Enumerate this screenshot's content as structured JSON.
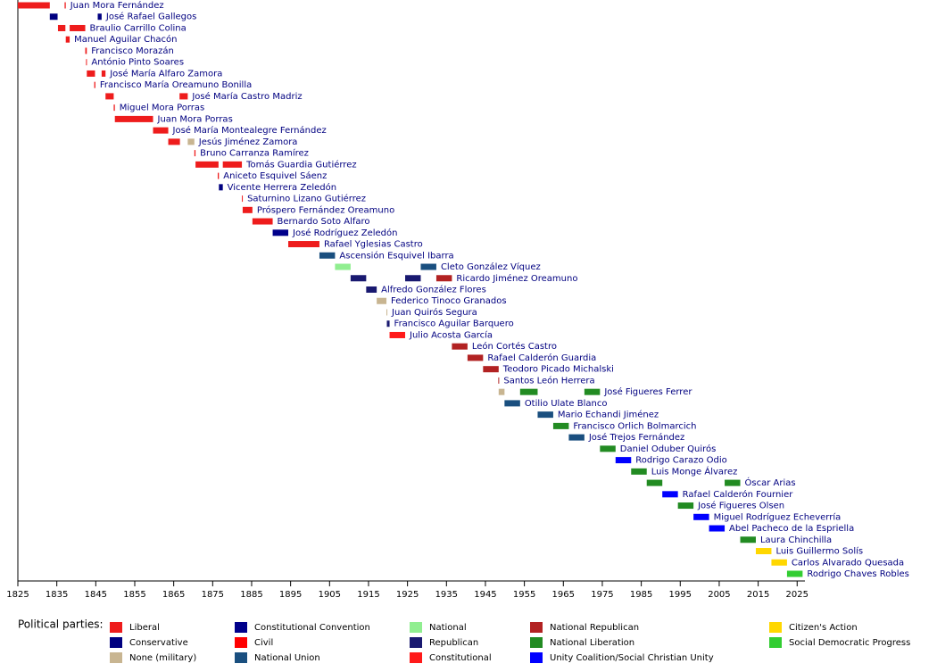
{
  "chart_data": {
    "type": "timeline",
    "xlim": [
      1825,
      2027
    ],
    "xticks": [
      1825,
      1835,
      1845,
      1855,
      1865,
      1875,
      1885,
      1895,
      1905,
      1915,
      1925,
      1935,
      1945,
      1955,
      1965,
      1975,
      1985,
      1995,
      2005,
      2015,
      2025
    ],
    "legend_title": "Political parties:",
    "parties": [
      {
        "name": "Liberal",
        "color": "#ee1c1c"
      },
      {
        "name": "Conservative",
        "color": "#000080"
      },
      {
        "name": "None (military)",
        "color": "#c8b591"
      },
      {
        "name": "Constitutional Convention",
        "color": "#00008b"
      },
      {
        "name": "Civil",
        "color": "#ff0000"
      },
      {
        "name": "National Union",
        "color": "#1a4f7f"
      },
      {
        "name": "National",
        "color": "#90ee90"
      },
      {
        "name": "Republican",
        "color": "#191970"
      },
      {
        "name": "Constitutional",
        "color": "#ff1a1a"
      },
      {
        "name": "National Republican",
        "color": "#b22222"
      },
      {
        "name": "National Liberation",
        "color": "#228b22"
      },
      {
        "name": "Unity Coalition/Social Christian Unity",
        "color": "#0000ff"
      },
      {
        "name": "Citizen's Action",
        "color": "#ffd700"
      },
      {
        "name": "Social Democratic Progress",
        "color": "#32cd32"
      }
    ],
    "rows": [
      {
        "name": "Juan Mora Fernández",
        "spans": [
          {
            "start": 1825,
            "end": 1833.2,
            "color": "#ee1c1c"
          },
          {
            "start": 1837,
            "end": 1837.3,
            "color": "#ee1c1c"
          }
        ]
      },
      {
        "name": "José Rafael Gallegos",
        "spans": [
          {
            "start": 1833.2,
            "end": 1835.2,
            "color": "#000080"
          },
          {
            "start": 1845.5,
            "end": 1846.5,
            "color": "#000080"
          }
        ]
      },
      {
        "name": "Braulio Carrillo Colina",
        "spans": [
          {
            "start": 1835.3,
            "end": 1837.2,
            "color": "#ee1c1c"
          },
          {
            "start": 1838.3,
            "end": 1842.3,
            "color": "#ee1c1c"
          }
        ]
      },
      {
        "name": "Manuel Aguilar Chacón",
        "spans": [
          {
            "start": 1837.3,
            "end": 1838.3,
            "color": "#ee1c1c"
          }
        ]
      },
      {
        "name": "Francisco Morazán",
        "spans": [
          {
            "start": 1842.3,
            "end": 1842.7,
            "color": "#ee1c1c"
          }
        ]
      },
      {
        "name": "António Pinto Soares",
        "spans": [
          {
            "start": 1842.5,
            "end": 1842.7,
            "color": "#ee1c1c"
          }
        ]
      },
      {
        "name": "José María Alfaro Zamora",
        "spans": [
          {
            "start": 1842.7,
            "end": 1844.8,
            "color": "#ee1c1c"
          },
          {
            "start": 1846.5,
            "end": 1847.5,
            "color": "#ee1c1c"
          }
        ]
      },
      {
        "name": "Francisco María Oreamuno Bonilla",
        "spans": [
          {
            "start": 1844.6,
            "end": 1844.9,
            "color": "#ee1c1c"
          }
        ]
      },
      {
        "name": "José María Castro Madriz",
        "spans": [
          {
            "start": 1847.5,
            "end": 1849.6,
            "color": "#ee1c1c"
          },
          {
            "start": 1866.5,
            "end": 1868.6,
            "color": "#ee1c1c"
          }
        ]
      },
      {
        "name": "Miguel Mora Porras",
        "spans": [
          {
            "start": 1849.6,
            "end": 1849.9,
            "color": "#ee1c1c"
          }
        ]
      },
      {
        "name": "Juan Mora Porras",
        "spans": [
          {
            "start": 1849.9,
            "end": 1859.7,
            "color": "#ee1c1c"
          }
        ]
      },
      {
        "name": "José María Montealegre Fernández",
        "spans": [
          {
            "start": 1859.7,
            "end": 1863.6,
            "color": "#ee1c1c"
          }
        ]
      },
      {
        "name": "Jesús Jiménez Zamora",
        "spans": [
          {
            "start": 1863.6,
            "end": 1866.6,
            "color": "#ee1c1c"
          },
          {
            "start": 1868.6,
            "end": 1870.3,
            "color": "#c8b591"
          }
        ]
      },
      {
        "name": "Bruno Carranza Ramírez",
        "spans": [
          {
            "start": 1870.3,
            "end": 1870.6,
            "color": "#ee1c1c"
          }
        ]
      },
      {
        "name": "Tomás Guardia Gutiérrez",
        "spans": [
          {
            "start": 1870.6,
            "end": 1876.5,
            "color": "#ee1c1c"
          },
          {
            "start": 1877.6,
            "end": 1882.5,
            "color": "#ee1c1c"
          }
        ]
      },
      {
        "name": "Aniceto Esquivel Sáenz",
        "spans": [
          {
            "start": 1876.3,
            "end": 1876.6,
            "color": "#ee1c1c"
          }
        ]
      },
      {
        "name": "Vicente Herrera Zeledón",
        "spans": [
          {
            "start": 1876.6,
            "end": 1877.6,
            "color": "#000080"
          }
        ]
      },
      {
        "name": "Saturnino Lizano Gutiérrez",
        "spans": [
          {
            "start": 1882.5,
            "end": 1882.7,
            "color": "#ee1c1c"
          }
        ]
      },
      {
        "name": "Próspero Fernández Oreamuno",
        "spans": [
          {
            "start": 1882.7,
            "end": 1885.2,
            "color": "#ee1c1c"
          }
        ]
      },
      {
        "name": "Bernardo Soto Alfaro",
        "spans": [
          {
            "start": 1885.2,
            "end": 1890.4,
            "color": "#ee1c1c"
          }
        ]
      },
      {
        "name": "José Rodríguez Zeledón",
        "spans": [
          {
            "start": 1890.4,
            "end": 1894.4,
            "color": "#00008b"
          }
        ]
      },
      {
        "name": "Rafael Yglesias Castro",
        "spans": [
          {
            "start": 1894.4,
            "end": 1902.4,
            "color": "#ee1c1c"
          }
        ]
      },
      {
        "name": "Ascensión Esquivel Ibarra",
        "spans": [
          {
            "start": 1902.4,
            "end": 1906.4,
            "color": "#1a4f7f"
          }
        ]
      },
      {
        "name": "Cleto González Víquez",
        "spans": [
          {
            "start": 1906.4,
            "end": 1910.4,
            "color": "#90ee90"
          },
          {
            "start": 1928.4,
            "end": 1932.4,
            "color": "#1a4f7f"
          }
        ]
      },
      {
        "name": "Ricardo Jiménez Oreamuno",
        "spans": [
          {
            "start": 1910.4,
            "end": 1914.4,
            "color": "#191970"
          },
          {
            "start": 1924.4,
            "end": 1928.4,
            "color": "#191970"
          },
          {
            "start": 1932.4,
            "end": 1936.4,
            "color": "#b22222"
          }
        ]
      },
      {
        "name": "Alfredo González Flores",
        "spans": [
          {
            "start": 1914.4,
            "end": 1917.1,
            "color": "#191970"
          }
        ]
      },
      {
        "name": "Federico Tinoco Granados",
        "spans": [
          {
            "start": 1917.1,
            "end": 1919.6,
            "color": "#c8b591"
          }
        ]
      },
      {
        "name": "Juan Quirós Segura",
        "spans": [
          {
            "start": 1919.6,
            "end": 1919.7,
            "color": "#c8b591"
          }
        ]
      },
      {
        "name": "Francisco Aguilar Barquero",
        "spans": [
          {
            "start": 1919.7,
            "end": 1920.4,
            "color": "#191970"
          }
        ]
      },
      {
        "name": "Julio Acosta García",
        "spans": [
          {
            "start": 1920.4,
            "end": 1924.4,
            "color": "#ff1a1a"
          }
        ]
      },
      {
        "name": "León Cortés Castro",
        "spans": [
          {
            "start": 1936.4,
            "end": 1940.4,
            "color": "#b22222"
          }
        ]
      },
      {
        "name": "Rafael Calderón Guardia",
        "spans": [
          {
            "start": 1940.4,
            "end": 1944.4,
            "color": "#b22222"
          }
        ]
      },
      {
        "name": "Teodoro Picado Michalski",
        "spans": [
          {
            "start": 1944.4,
            "end": 1948.4,
            "color": "#b22222"
          }
        ]
      },
      {
        "name": "Santos León Herrera",
        "spans": [
          {
            "start": 1948.3,
            "end": 1948.4,
            "color": "#b22222"
          }
        ]
      },
      {
        "name": "José Figueres Ferrer",
        "spans": [
          {
            "start": 1948.4,
            "end": 1949.9,
            "color": "#c8b591"
          },
          {
            "start": 1953.9,
            "end": 1958.4,
            "color": "#228b22"
          },
          {
            "start": 1970.4,
            "end": 1974.4,
            "color": "#228b22"
          }
        ]
      },
      {
        "name": "Otilio Ulate Blanco",
        "spans": [
          {
            "start": 1949.9,
            "end": 1953.9,
            "color": "#1a4f7f"
          }
        ]
      },
      {
        "name": "Mario Echandi Jiménez",
        "spans": [
          {
            "start": 1958.4,
            "end": 1962.4,
            "color": "#1a4f7f"
          }
        ]
      },
      {
        "name": "Francisco Orlich Bolmarcich",
        "spans": [
          {
            "start": 1962.4,
            "end": 1966.4,
            "color": "#228b22"
          }
        ]
      },
      {
        "name": "José Trejos Fernández",
        "spans": [
          {
            "start": 1966.4,
            "end": 1970.4,
            "color": "#1a4f7f"
          }
        ]
      },
      {
        "name": "Daniel Oduber Quirós",
        "spans": [
          {
            "start": 1974.4,
            "end": 1978.4,
            "color": "#228b22"
          }
        ]
      },
      {
        "name": "Rodrigo Carazo Odio",
        "spans": [
          {
            "start": 1978.4,
            "end": 1982.4,
            "color": "#0000ff"
          }
        ]
      },
      {
        "name": "Luis Monge Álvarez",
        "spans": [
          {
            "start": 1982.4,
            "end": 1986.4,
            "color": "#228b22"
          }
        ]
      },
      {
        "name": "Óscar Arias",
        "spans": [
          {
            "start": 1986.4,
            "end": 1990.4,
            "color": "#228b22"
          },
          {
            "start": 2006.4,
            "end": 2010.4,
            "color": "#228b22"
          }
        ]
      },
      {
        "name": "Rafael Calderón Fournier",
        "spans": [
          {
            "start": 1990.4,
            "end": 1994.4,
            "color": "#0000ff"
          }
        ]
      },
      {
        "name": "José Figueres Olsen",
        "spans": [
          {
            "start": 1994.4,
            "end": 1998.4,
            "color": "#228b22"
          }
        ]
      },
      {
        "name": "Miguel Rodríguez Echeverría",
        "spans": [
          {
            "start": 1998.4,
            "end": 2002.4,
            "color": "#0000ff"
          }
        ]
      },
      {
        "name": "Abel Pacheco de la Espriella",
        "spans": [
          {
            "start": 2002.4,
            "end": 2006.4,
            "color": "#0000ff"
          }
        ]
      },
      {
        "name": "Laura Chinchilla",
        "spans": [
          {
            "start": 2010.4,
            "end": 2014.4,
            "color": "#228b22"
          }
        ]
      },
      {
        "name": "Luis Guillermo Solís",
        "spans": [
          {
            "start": 2014.4,
            "end": 2018.4,
            "color": "#ffd700"
          }
        ]
      },
      {
        "name": "Carlos Alvarado Quesada",
        "spans": [
          {
            "start": 2018.4,
            "end": 2022.4,
            "color": "#ffd700"
          }
        ]
      },
      {
        "name": "Rodrigo Chaves Robles",
        "spans": [
          {
            "start": 2022.4,
            "end": 2026.4,
            "color": "#32cd32"
          }
        ]
      }
    ]
  }
}
